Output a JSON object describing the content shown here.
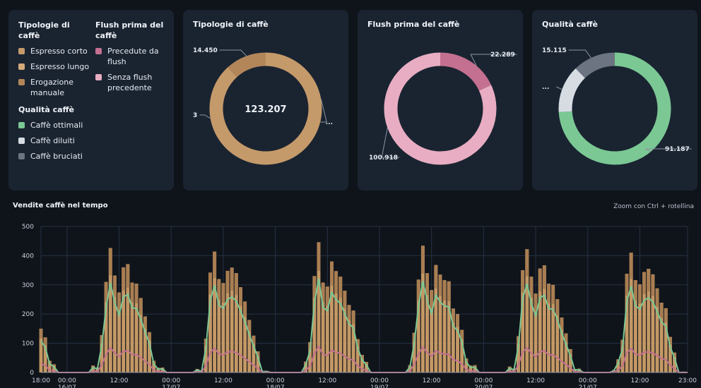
{
  "legend": {
    "groups": [
      {
        "title": "Tipologie di caffè",
        "items": [
          {
            "label": "Espresso corto",
            "color": "#c59a6a"
          },
          {
            "label": "Espresso lungo",
            "color": "#d4aa7a"
          },
          {
            "label": "Erogazione manuale",
            "color": "#b3865a"
          }
        ]
      },
      {
        "title": "Flush prima del caffè",
        "items": [
          {
            "label": "Precedute da flush",
            "color": "#c47090"
          },
          {
            "label": "Senza flush precedente",
            "color": "#e8adc2"
          }
        ]
      },
      {
        "title": "Qualità caffè",
        "items": [
          {
            "label": "Caffè ottimali",
            "color": "#7bc894"
          },
          {
            "label": "Caffè diluiti",
            "color": "#d7dce3"
          },
          {
            "label": "Caffè bruciati",
            "color": "#6b7480"
          }
        ]
      }
    ]
  },
  "donuts": [
    {
      "title": "Tipologie di caffè",
      "center": "123.207",
      "segments": [
        {
          "value": 108757,
          "color": "#c59a6a"
        },
        {
          "value": 3,
          "color": "#d4aa7a"
        },
        {
          "value": 14450,
          "color": "#b3865a"
        }
      ],
      "labels": [
        "...",
        "3",
        "14.450"
      ]
    },
    {
      "title": "Flush prima del caffè",
      "center": "",
      "segments": [
        {
          "value": 22289,
          "color": "#c47090"
        },
        {
          "value": 100918,
          "color": "#e8adc2"
        }
      ],
      "labels": [
        "22.289",
        "100.918"
      ]
    },
    {
      "title": "Qualità caffè",
      "center": "",
      "segments": [
        {
          "value": 91187,
          "color": "#7bc894"
        },
        {
          "value": 16905,
          "color": "#d7dce3"
        },
        {
          "value": 15115,
          "color": "#6b7480"
        }
      ],
      "labels": [
        "91.187",
        "...",
        "15.115"
      ]
    }
  ],
  "timeseries": {
    "title": "Vendite caffè nel tempo",
    "hint": "Zoom con Ctrl + rotellina",
    "chart_data": {
      "type": "bar",
      "ylim": [
        0,
        500
      ],
      "y_ticks": [
        "0",
        "100",
        "200",
        "300",
        "400",
        "500"
      ],
      "x_ticks": [
        {
          "h": 18,
          "time": "18:00",
          "date": ""
        },
        {
          "h": 24,
          "time": "00:00",
          "date": "16/07"
        },
        {
          "h": 36,
          "time": "12:00",
          "date": ""
        },
        {
          "h": 48,
          "time": "00:00",
          "date": "17/07"
        },
        {
          "h": 60,
          "time": "12:00",
          "date": ""
        },
        {
          "h": 72,
          "time": "00:00",
          "date": "18/07"
        },
        {
          "h": 84,
          "time": "12:00",
          "date": ""
        },
        {
          "h": 96,
          "time": "00:00",
          "date": "19/07"
        },
        {
          "h": 108,
          "time": "12:00",
          "date": ""
        },
        {
          "h": 120,
          "time": "00:00",
          "date": "20/07"
        },
        {
          "h": 132,
          "time": "12:00",
          "date": ""
        },
        {
          "h": 144,
          "time": "00:00",
          "date": "21/07"
        },
        {
          "h": 156,
          "time": "12:00",
          "date": ""
        },
        {
          "h": 167,
          "time": "23:00",
          "date": ""
        }
      ],
      "daily_profile": [
        0,
        0,
        0,
        0,
        0,
        0,
        4,
        25,
        120,
        330,
        430,
        320,
        290,
        360,
        355,
        320,
        300,
        235,
        200,
        130,
        60,
        20,
        5,
        0
      ],
      "series": [
        {
          "name": "Caffè ottimali",
          "color": "#7bc894"
        },
        {
          "name": "Precedute da flush",
          "color": "#c47090"
        }
      ]
    }
  }
}
